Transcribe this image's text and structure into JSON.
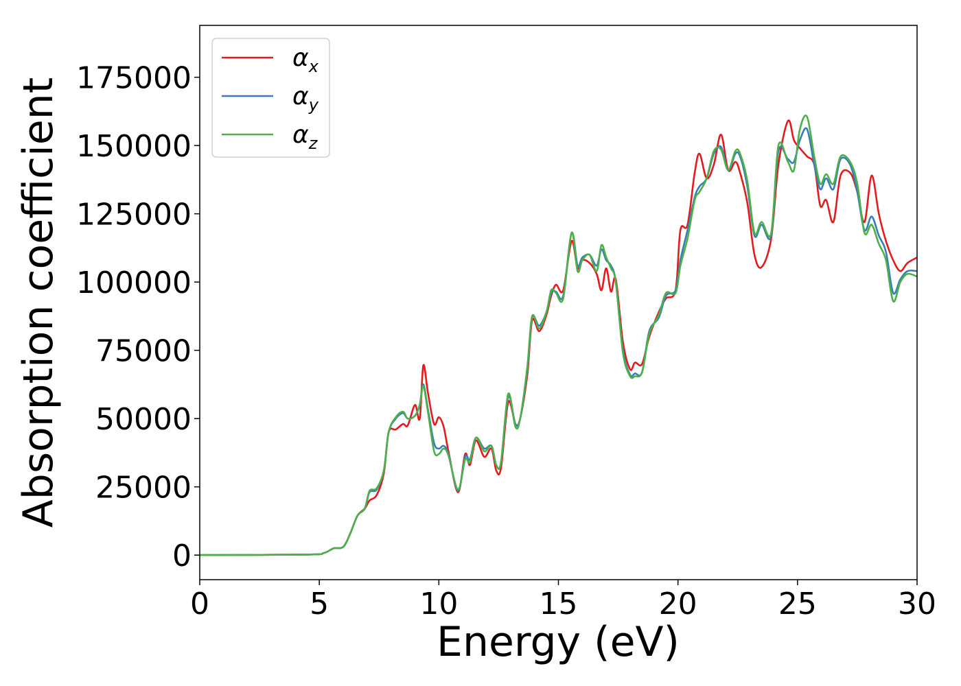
{
  "chart_data": {
    "type": "line",
    "title": "",
    "xlabel": "Energy (eV)",
    "ylabel": "Absorption coefficient",
    "xlim": [
      0,
      30
    ],
    "ylim": [
      -9000,
      194000
    ],
    "xticks": [
      0,
      5,
      10,
      15,
      20,
      25,
      30
    ],
    "xtick_labels": [
      "0",
      "5",
      "10",
      "15",
      "20",
      "25",
      "30"
    ],
    "yticks": [
      0,
      25000,
      50000,
      75000,
      100000,
      125000,
      150000,
      175000
    ],
    "ytick_labels": [
      "0",
      "25000",
      "50000",
      "75000",
      "100000",
      "125000",
      "150000",
      "175000"
    ],
    "grid": false,
    "legend_position": "top-left",
    "series": [
      {
        "name": "α",
        "subscript": "x",
        "color": "#e41a1c",
        "points": [
          [
            0,
            0
          ],
          [
            4.5,
            200
          ],
          [
            5.2,
            800
          ],
          [
            5.6,
            2500
          ],
          [
            6.0,
            3000
          ],
          [
            6.3,
            8000
          ],
          [
            6.6,
            14500
          ],
          [
            6.9,
            17000
          ],
          [
            7.1,
            20000
          ],
          [
            7.4,
            22000
          ],
          [
            7.7,
            30000
          ],
          [
            7.9,
            45000
          ],
          [
            8.2,
            46000
          ],
          [
            8.5,
            48000
          ],
          [
            8.7,
            47500
          ],
          [
            9.0,
            55000
          ],
          [
            9.2,
            50000
          ],
          [
            9.35,
            69500
          ],
          [
            9.55,
            59000
          ],
          [
            9.8,
            48000
          ],
          [
            10.0,
            50500
          ],
          [
            10.2,
            47000
          ],
          [
            10.4,
            38000
          ],
          [
            10.8,
            23000
          ],
          [
            11.1,
            37000
          ],
          [
            11.3,
            33000
          ],
          [
            11.55,
            42000
          ],
          [
            11.9,
            36000
          ],
          [
            12.2,
            39000
          ],
          [
            12.4,
            31000
          ],
          [
            12.6,
            32000
          ],
          [
            12.9,
            56000
          ],
          [
            13.2,
            48000
          ],
          [
            13.4,
            50000
          ],
          [
            13.7,
            66000
          ],
          [
            13.9,
            86000
          ],
          [
            14.2,
            82000
          ],
          [
            14.5,
            88000
          ],
          [
            14.7,
            95000
          ],
          [
            14.9,
            99000
          ],
          [
            15.2,
            97000
          ],
          [
            15.55,
            115000
          ],
          [
            15.8,
            105000
          ],
          [
            16.0,
            108000
          ],
          [
            16.3,
            107000
          ],
          [
            16.6,
            103000
          ],
          [
            16.8,
            97000
          ],
          [
            17.0,
            105000
          ],
          [
            17.2,
            96500
          ],
          [
            17.4,
            101000
          ],
          [
            17.7,
            78000
          ],
          [
            18.0,
            68000
          ],
          [
            18.2,
            70500
          ],
          [
            18.5,
            70000
          ],
          [
            18.8,
            80000
          ],
          [
            19.2,
            89000
          ],
          [
            19.5,
            94000
          ],
          [
            19.9,
            97000
          ],
          [
            20.1,
            119000
          ],
          [
            20.4,
            121000
          ],
          [
            20.7,
            140000
          ],
          [
            20.9,
            147000
          ],
          [
            21.2,
            138000
          ],
          [
            21.5,
            143000
          ],
          [
            21.8,
            154000
          ],
          [
            22.1,
            141000
          ],
          [
            22.4,
            144000
          ],
          [
            22.6,
            140000
          ],
          [
            22.9,
            129000
          ],
          [
            23.2,
            110000
          ],
          [
            23.5,
            105500
          ],
          [
            23.9,
            116000
          ],
          [
            24.2,
            143000
          ],
          [
            24.6,
            159000
          ],
          [
            24.85,
            152000
          ],
          [
            25.1,
            149000
          ],
          [
            25.4,
            146000
          ],
          [
            25.7,
            143000
          ],
          [
            25.95,
            128000
          ],
          [
            26.2,
            130000
          ],
          [
            26.5,
            122000
          ],
          [
            26.8,
            139000
          ],
          [
            27.2,
            140000
          ],
          [
            27.5,
            133000
          ],
          [
            27.8,
            122000
          ],
          [
            28.1,
            139000
          ],
          [
            28.4,
            125000
          ],
          [
            28.7,
            115000
          ],
          [
            29.0,
            108000
          ],
          [
            29.3,
            104000
          ],
          [
            29.6,
            107000
          ],
          [
            30,
            109000
          ]
        ]
      },
      {
        "name": "α",
        "subscript": "y",
        "color": "#377eb8",
        "points": [
          [
            0,
            0
          ],
          [
            4.5,
            200
          ],
          [
            5.2,
            800
          ],
          [
            5.6,
            2500
          ],
          [
            6.0,
            3000
          ],
          [
            6.3,
            8000
          ],
          [
            6.6,
            14500
          ],
          [
            6.9,
            17000
          ],
          [
            7.1,
            23000
          ],
          [
            7.4,
            24000
          ],
          [
            7.7,
            31000
          ],
          [
            7.9,
            45000
          ],
          [
            8.2,
            50000
          ],
          [
            8.5,
            52000
          ],
          [
            8.7,
            50000
          ],
          [
            9.0,
            51000
          ],
          [
            9.2,
            55000
          ],
          [
            9.35,
            62500
          ],
          [
            9.55,
            53000
          ],
          [
            9.8,
            41000
          ],
          [
            10.0,
            39000
          ],
          [
            10.2,
            40000
          ],
          [
            10.4,
            37000
          ],
          [
            10.8,
            23500
          ],
          [
            11.1,
            36000
          ],
          [
            11.3,
            35000
          ],
          [
            11.55,
            43000
          ],
          [
            11.9,
            39000
          ],
          [
            12.2,
            40000
          ],
          [
            12.4,
            33000
          ],
          [
            12.6,
            34000
          ],
          [
            12.9,
            58000
          ],
          [
            13.2,
            48000
          ],
          [
            13.4,
            50000
          ],
          [
            13.7,
            68000
          ],
          [
            13.9,
            87000
          ],
          [
            14.2,
            84000
          ],
          [
            14.5,
            89000
          ],
          [
            14.7,
            96000
          ],
          [
            14.9,
            96500
          ],
          [
            15.2,
            95000
          ],
          [
            15.55,
            118000
          ],
          [
            15.8,
            106000
          ],
          [
            16.0,
            109000
          ],
          [
            16.3,
            110000
          ],
          [
            16.6,
            106000
          ],
          [
            16.8,
            112000
          ],
          [
            17.0,
            108000
          ],
          [
            17.2,
            106000
          ],
          [
            17.4,
            100000
          ],
          [
            17.7,
            75000
          ],
          [
            18.0,
            66000
          ],
          [
            18.2,
            66500
          ],
          [
            18.5,
            67000
          ],
          [
            18.8,
            82000
          ],
          [
            19.2,
            87000
          ],
          [
            19.5,
            95000
          ],
          [
            19.9,
            97000
          ],
          [
            20.1,
            108000
          ],
          [
            20.4,
            119000
          ],
          [
            20.7,
            131000
          ],
          [
            20.9,
            135000
          ],
          [
            21.2,
            138000
          ],
          [
            21.5,
            147000
          ],
          [
            21.8,
            149500
          ],
          [
            22.1,
            141000
          ],
          [
            22.4,
            147000
          ],
          [
            22.6,
            146000
          ],
          [
            22.9,
            135000
          ],
          [
            23.2,
            117000
          ],
          [
            23.5,
            121000
          ],
          [
            23.9,
            117000
          ],
          [
            24.2,
            148000
          ],
          [
            24.6,
            145000
          ],
          [
            24.85,
            144000
          ],
          [
            25.1,
            152000
          ],
          [
            25.4,
            156000
          ],
          [
            25.7,
            143000
          ],
          [
            25.95,
            134000
          ],
          [
            26.2,
            138000
          ],
          [
            26.5,
            134000
          ],
          [
            26.8,
            145000
          ],
          [
            27.2,
            143000
          ],
          [
            27.5,
            133000
          ],
          [
            27.8,
            119000
          ],
          [
            28.1,
            124000
          ],
          [
            28.4,
            117000
          ],
          [
            28.7,
            111000
          ],
          [
            29.0,
            96000
          ],
          [
            29.3,
            101000
          ],
          [
            29.6,
            104000
          ],
          [
            30,
            104000
          ]
        ]
      },
      {
        "name": "α",
        "subscript": "z",
        "color": "#4daf4a",
        "points": [
          [
            0,
            0
          ],
          [
            4.5,
            200
          ],
          [
            5.2,
            800
          ],
          [
            5.6,
            2500
          ],
          [
            6.0,
            3000
          ],
          [
            6.3,
            8000
          ],
          [
            6.6,
            14500
          ],
          [
            6.9,
            17000
          ],
          [
            7.1,
            23500
          ],
          [
            7.4,
            24500
          ],
          [
            7.7,
            31000
          ],
          [
            7.9,
            45000
          ],
          [
            8.2,
            50500
          ],
          [
            8.5,
            52500
          ],
          [
            8.7,
            50000
          ],
          [
            9.0,
            51000
          ],
          [
            9.2,
            55000
          ],
          [
            9.35,
            62000
          ],
          [
            9.55,
            52000
          ],
          [
            9.8,
            38000
          ],
          [
            10.0,
            37000
          ],
          [
            10.2,
            39000
          ],
          [
            10.4,
            36500
          ],
          [
            10.8,
            24000
          ],
          [
            11.1,
            35000
          ],
          [
            11.3,
            34000
          ],
          [
            11.55,
            43000
          ],
          [
            11.9,
            38000
          ],
          [
            12.2,
            40000
          ],
          [
            12.4,
            33000
          ],
          [
            12.6,
            34000
          ],
          [
            12.9,
            59000
          ],
          [
            13.2,
            47000
          ],
          [
            13.4,
            50000
          ],
          [
            13.7,
            69000
          ],
          [
            13.9,
            87500
          ],
          [
            14.2,
            83000
          ],
          [
            14.5,
            89000
          ],
          [
            14.7,
            97000
          ],
          [
            14.9,
            96000
          ],
          [
            15.2,
            94000
          ],
          [
            15.55,
            118000
          ],
          [
            15.8,
            104000
          ],
          [
            16.0,
            108000
          ],
          [
            16.3,
            110000
          ],
          [
            16.6,
            104000
          ],
          [
            16.8,
            113500
          ],
          [
            17.0,
            109000
          ],
          [
            17.2,
            105000
          ],
          [
            17.4,
            100000
          ],
          [
            17.7,
            74000
          ],
          [
            18.0,
            65500
          ],
          [
            18.2,
            65500
          ],
          [
            18.5,
            67000
          ],
          [
            18.8,
            81000
          ],
          [
            19.2,
            88000
          ],
          [
            19.5,
            96000
          ],
          [
            19.9,
            96000
          ],
          [
            20.1,
            106000
          ],
          [
            20.4,
            116000
          ],
          [
            20.7,
            130000
          ],
          [
            20.9,
            133000
          ],
          [
            21.2,
            138000
          ],
          [
            21.5,
            148000
          ],
          [
            21.8,
            148500
          ],
          [
            22.1,
            141000
          ],
          [
            22.4,
            148000
          ],
          [
            22.6,
            147000
          ],
          [
            22.9,
            137000
          ],
          [
            23.2,
            118000
          ],
          [
            23.5,
            122000
          ],
          [
            23.9,
            118000
          ],
          [
            24.2,
            150000
          ],
          [
            24.6,
            144000
          ],
          [
            24.85,
            141000
          ],
          [
            25.1,
            156000
          ],
          [
            25.4,
            160500
          ],
          [
            25.7,
            146000
          ],
          [
            25.95,
            136000
          ],
          [
            26.2,
            139500
          ],
          [
            26.5,
            136000
          ],
          [
            26.8,
            146000
          ],
          [
            27.2,
            144000
          ],
          [
            27.5,
            136000
          ],
          [
            27.8,
            118000
          ],
          [
            28.1,
            121000
          ],
          [
            28.4,
            114000
          ],
          [
            28.7,
            108000
          ],
          [
            29.0,
            93000
          ],
          [
            29.3,
            100000
          ],
          [
            29.6,
            103000
          ],
          [
            30,
            102000
          ]
        ]
      }
    ]
  }
}
